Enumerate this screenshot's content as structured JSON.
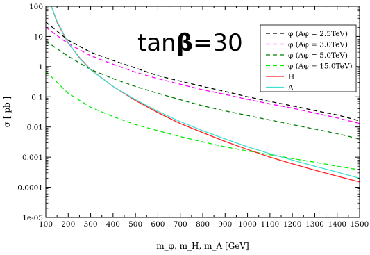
{
  "chart_data": {
    "type": "line",
    "title": "",
    "annotation": {
      "prefix": "tan",
      "symbol": "β",
      "suffix": "=30"
    },
    "xlabel": "m_φ, m_H, m_A [GeV]",
    "ylabel": "σ [ pb ]",
    "xlim": [
      100,
      1500
    ],
    "ylim": [
      1e-05,
      100
    ],
    "yscale": "log",
    "grid": false,
    "legend_position": "top-right",
    "x_ticks": [
      100,
      200,
      300,
      400,
      500,
      600,
      700,
      800,
      900,
      1000,
      1100,
      1200,
      1300,
      1400,
      1500
    ],
    "x_tick_labels": [
      "100",
      "200",
      "300",
      "400",
      "500",
      "600",
      "700",
      "800",
      "900",
      "1000",
      "1100",
      "1200",
      "1300",
      "1400",
      "1500"
    ],
    "y_ticks": [
      1e-05,
      0.0001,
      0.001,
      0.01,
      0.1,
      1,
      10,
      100
    ],
    "y_tick_labels": [
      "1e-05",
      "0.0001",
      "0.001",
      "0.01",
      "0.1",
      "1",
      "10",
      "100"
    ],
    "series": [
      {
        "name": "φ (Aφ = 2.5TeV)",
        "color": "#000000",
        "dash": "dashed",
        "x": [
          100,
          200,
          300,
          400,
          500,
          600,
          700,
          800,
          900,
          1000,
          1100,
          1200,
          1300,
          1400,
          1500
        ],
        "y": [
          30,
          7.5,
          3.0,
          1.6,
          0.9,
          0.5,
          0.33,
          0.22,
          0.15,
          0.1,
          0.07,
          0.05,
          0.035,
          0.025,
          0.016
        ]
      },
      {
        "name": "φ (Aφ = 3.0TeV)",
        "color": "#ff00ff",
        "dash": "dashed",
        "x": [
          100,
          200,
          300,
          400,
          500,
          600,
          700,
          800,
          900,
          1000,
          1100,
          1200,
          1300,
          1400,
          1500
        ],
        "y": [
          20,
          5.8,
          2.3,
          1.2,
          0.65,
          0.4,
          0.26,
          0.17,
          0.12,
          0.082,
          0.058,
          0.042,
          0.029,
          0.02,
          0.013
        ]
      },
      {
        "name": "φ (Aφ = 5.0TeV)",
        "color": "#008000",
        "dash": "dashed",
        "x": [
          100,
          200,
          300,
          400,
          500,
          600,
          700,
          800,
          900,
          1000,
          1100,
          1200,
          1300,
          1400,
          1500
        ],
        "y": [
          7.0,
          2.2,
          0.8,
          0.4,
          0.22,
          0.13,
          0.08,
          0.05,
          0.034,
          0.024,
          0.017,
          0.012,
          0.0085,
          0.006,
          0.004
        ]
      },
      {
        "name": "φ (Aφ = 15.0TeV)",
        "color": "#00ee00",
        "dash": "dashed",
        "x": [
          100,
          200,
          300,
          400,
          500,
          600,
          700,
          800,
          900,
          1000,
          1100,
          1200,
          1300,
          1400,
          1500
        ],
        "y": [
          0.7,
          0.13,
          0.045,
          0.022,
          0.012,
          0.0075,
          0.0048,
          0.0032,
          0.0022,
          0.0016,
          0.0012,
          0.0009,
          0.00068,
          0.0005,
          0.00038
        ]
      },
      {
        "name": "H",
        "color": "#ff2020",
        "dash": "solid",
        "x": [
          125,
          150,
          200,
          250,
          300,
          400,
          500,
          600,
          700,
          800,
          900,
          1000,
          1100,
          1200,
          1300,
          1400,
          1500
        ],
        "y": [
          100,
          30,
          6.0,
          2.0,
          0.8,
          0.22,
          0.075,
          0.03,
          0.013,
          0.0065,
          0.0033,
          0.0018,
          0.001,
          0.0006,
          0.00037,
          0.000235,
          0.00015
        ]
      },
      {
        "name": "A",
        "color": "#40e0d0",
        "dash": "solid",
        "x": [
          125,
          150,
          200,
          250,
          300,
          400,
          500,
          600,
          700,
          800,
          900,
          1000,
          1100,
          1200,
          1300,
          1400,
          1500
        ],
        "y": [
          100,
          32,
          6.2,
          1.9,
          0.78,
          0.22,
          0.08,
          0.033,
          0.015,
          0.0075,
          0.004,
          0.0022,
          0.0013,
          0.0008,
          0.0005,
          0.00032,
          0.0002
        ]
      }
    ]
  }
}
